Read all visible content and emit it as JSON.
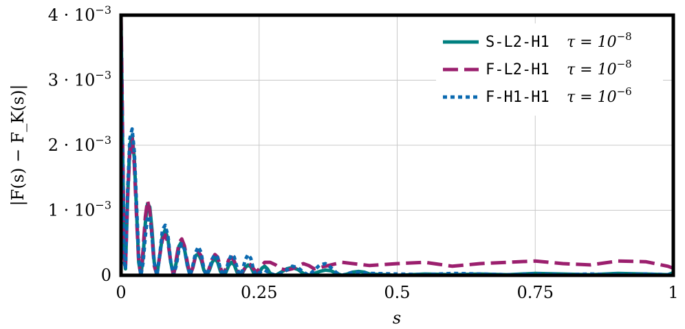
{
  "chart_data": {
    "type": "line",
    "xlabel": "s",
    "ylabel": "|F(s) − F_K(s)|",
    "xlim": [
      0,
      1
    ],
    "ylim": [
      0,
      0.004
    ],
    "grid": true,
    "legend_position": "top-right",
    "x_ticks": [
      {
        "value": 0,
        "label": "0"
      },
      {
        "value": 0.25,
        "label": "0.25"
      },
      {
        "value": 0.5,
        "label": "0.5"
      },
      {
        "value": 0.75,
        "label": "0.75"
      },
      {
        "value": 1,
        "label": "1"
      }
    ],
    "y_ticks": [
      {
        "value": 0,
        "label": "0",
        "base": "",
        "exp": ""
      },
      {
        "value": 0.001,
        "label": "1 · 10^-3",
        "base": "1 · 10",
        "exp": "−3"
      },
      {
        "value": 0.002,
        "label": "2 · 10^-3",
        "base": "2 · 10",
        "exp": "−3"
      },
      {
        "value": 0.003,
        "label": "3 · 10^-3",
        "base": "3 · 10",
        "exp": "−3"
      },
      {
        "value": 0.004,
        "label": "4 · 10^-3",
        "base": "4 · 10",
        "exp": "−3"
      }
    ],
    "series": [
      {
        "name": "S-L2-H1 τ = 10^-8",
        "code": "S-L2-H1",
        "tau_text": "τ = 10",
        "tau_exp": "−8",
        "color": "#008080",
        "style": "solid",
        "x": [
          0,
          0.002,
          0.004,
          0.006,
          0.008,
          0.012,
          0.016,
          0.02,
          0.024,
          0.028,
          0.032,
          0.036,
          0.04,
          0.044,
          0.048,
          0.052,
          0.056,
          0.06,
          0.065,
          0.07,
          0.075,
          0.08,
          0.085,
          0.09,
          0.095,
          0.1,
          0.105,
          0.11,
          0.115,
          0.12,
          0.125,
          0.13,
          0.135,
          0.14,
          0.145,
          0.15,
          0.155,
          0.16,
          0.165,
          0.17,
          0.175,
          0.18,
          0.185,
          0.19,
          0.195,
          0.2,
          0.205,
          0.21,
          0.215,
          0.22,
          0.225,
          0.23,
          0.235,
          0.24,
          0.245,
          0.25,
          0.255,
          0.26,
          0.265,
          0.27,
          0.28,
          0.29,
          0.3,
          0.31,
          0.32,
          0.33,
          0.34,
          0.35,
          0.36,
          0.37,
          0.38,
          0.39,
          0.4,
          0.41,
          0.42,
          0.43,
          0.44,
          0.45,
          0.5,
          0.55,
          0.6,
          0.65,
          0.7,
          0.75,
          0.8,
          0.85,
          0.9,
          0.95,
          0.99,
          1.0
        ],
        "y": [
          0.0039,
          0.0026,
          0.0012,
          0.0003,
          0.0001,
          0.0012,
          0.002,
          0.00215,
          0.0018,
          0.001,
          0.0002,
          0.0,
          0.0003,
          0.0008,
          0.0011,
          0.00105,
          0.0007,
          0.0002,
          0.0,
          0.0003,
          0.0006,
          0.0007,
          0.00055,
          0.0002,
          0.0,
          0.0002,
          0.00045,
          0.00052,
          0.0004,
          0.00015,
          0.0,
          0.00012,
          0.0003,
          0.00033,
          0.00024,
          8e-05,
          0.0,
          8e-05,
          0.0002,
          0.00026,
          0.0002,
          6e-05,
          0.0,
          5e-05,
          0.00015,
          0.0002,
          0.00016,
          5e-05,
          0.0,
          4e-05,
          0.00012,
          0.00016,
          0.00013,
          4e-05,
          0.0,
          4e-05,
          0.00011,
          0.00014,
          0.0001,
          3e-05,
          0.0,
          5e-05,
          0.0001,
          0.00012,
          9e-05,
          3e-05,
          0.0,
          3e-05,
          6e-05,
          8e-05,
          7e-05,
          3e-05,
          0.0,
          2e-05,
          5e-05,
          6e-05,
          5e-05,
          2e-05,
          0.0,
          2e-05,
          1e-05,
          2e-05,
          1e-05,
          3e-05,
          2e-05,
          1e-05,
          3e-05,
          2e-05,
          1e-05,
          4e-05
        ]
      },
      {
        "name": "F-L2-H1 τ = 10^-8",
        "code": "F-L2-H1",
        "tau_text": "τ = 10",
        "tau_exp": "−8",
        "color": "#9b1f6e",
        "style": "dashed",
        "x": [
          0,
          0.002,
          0.004,
          0.006,
          0.008,
          0.012,
          0.016,
          0.02,
          0.024,
          0.028,
          0.032,
          0.036,
          0.04,
          0.044,
          0.048,
          0.052,
          0.056,
          0.06,
          0.065,
          0.07,
          0.075,
          0.08,
          0.085,
          0.09,
          0.095,
          0.1,
          0.105,
          0.11,
          0.115,
          0.12,
          0.125,
          0.13,
          0.135,
          0.14,
          0.145,
          0.15,
          0.155,
          0.16,
          0.165,
          0.17,
          0.175,
          0.18,
          0.185,
          0.19,
          0.195,
          0.2,
          0.205,
          0.21,
          0.215,
          0.22,
          0.225,
          0.23,
          0.235,
          0.24,
          0.245,
          0.25,
          0.26,
          0.27,
          0.28,
          0.29,
          0.3,
          0.31,
          0.32,
          0.33,
          0.34,
          0.35,
          0.37,
          0.4,
          0.45,
          0.5,
          0.55,
          0.6,
          0.65,
          0.7,
          0.75,
          0.8,
          0.85,
          0.9,
          0.95,
          0.99,
          1.0
        ],
        "y": [
          0.004,
          0.0028,
          0.0013,
          0.0003,
          0.0001,
          0.0012,
          0.0019,
          0.0021,
          0.0017,
          0.0009,
          0.0002,
          0.0,
          0.0004,
          0.0009,
          0.00115,
          0.001,
          0.0006,
          0.00015,
          0.0,
          0.0003,
          0.00055,
          0.00062,
          0.0005,
          0.0002,
          0.0,
          0.00025,
          0.0005,
          0.00056,
          0.00045,
          0.0002,
          0.0,
          0.00012,
          0.0003,
          0.00036,
          0.0003,
          0.0001,
          0.0,
          0.00012,
          0.00025,
          0.00032,
          0.00028,
          0.00012,
          0.0,
          0.00012,
          0.00024,
          0.00028,
          0.00022,
          0.0001,
          0.0,
          6e-05,
          0.00012,
          0.00018,
          0.00016,
          0.0001,
          5e-05,
          0.0001,
          0.0002,
          0.0002,
          0.00016,
          0.0001,
          8e-05,
          0.0001,
          0.00014,
          0.00018,
          0.00015,
          0.0001,
          0.00014,
          0.0002,
          0.00015,
          0.00018,
          0.0002,
          0.00014,
          0.00018,
          0.0002,
          0.00022,
          0.00018,
          0.00016,
          0.00022,
          0.00021,
          0.00014,
          0.00011
        ]
      },
      {
        "name": "F-H1-H1 τ = 10^-6",
        "code": "F-H1-H1",
        "tau_text": "τ = 10",
        "tau_exp": "−6",
        "color": "#0b6ab0",
        "style": "dotted",
        "x": [
          0,
          0.002,
          0.004,
          0.006,
          0.008,
          0.012,
          0.016,
          0.02,
          0.024,
          0.028,
          0.032,
          0.036,
          0.04,
          0.044,
          0.048,
          0.052,
          0.056,
          0.06,
          0.065,
          0.07,
          0.075,
          0.08,
          0.085,
          0.09,
          0.095,
          0.1,
          0.105,
          0.11,
          0.115,
          0.12,
          0.125,
          0.13,
          0.135,
          0.14,
          0.145,
          0.15,
          0.155,
          0.16,
          0.165,
          0.17,
          0.175,
          0.18,
          0.185,
          0.19,
          0.195,
          0.2,
          0.205,
          0.21,
          0.215,
          0.22,
          0.225,
          0.23,
          0.235,
          0.24,
          0.245,
          0.25,
          0.26,
          0.27,
          0.28,
          0.29,
          0.3,
          0.31,
          0.32,
          0.33,
          0.34,
          0.35,
          0.36,
          0.37,
          0.38,
          0.39,
          0.4,
          0.42,
          0.45,
          0.5,
          0.55,
          0.6,
          0.65,
          0.7,
          0.75,
          0.8,
          0.85,
          0.9,
          0.95,
          0.99,
          1.0
        ],
        "y": [
          0.0037,
          0.0024,
          0.0011,
          0.0002,
          0.0001,
          0.0013,
          0.0021,
          0.00225,
          0.0019,
          0.0011,
          0.0003,
          0.0,
          0.0002,
          0.0006,
          0.0009,
          0.0009,
          0.0006,
          0.0002,
          0.0,
          0.0003,
          0.0007,
          0.00077,
          0.0006,
          0.0002,
          0.0,
          0.00015,
          0.0004,
          0.00048,
          0.0004,
          0.00015,
          0.0,
          0.00015,
          0.00035,
          0.00044,
          0.00035,
          0.0001,
          0.0,
          0.0001,
          0.00025,
          0.00032,
          0.00027,
          0.0001,
          0.0,
          8e-05,
          0.00022,
          0.00032,
          0.00028,
          0.00012,
          0.0,
          8e-05,
          0.00024,
          0.00032,
          0.00026,
          8e-05,
          0.0,
          4e-05,
          8e-05,
          3e-05,
          0.0,
          3e-05,
          8e-05,
          0.00014,
          0.00012,
          5e-05,
          0.0,
          8e-05,
          0.00016,
          0.00018,
          0.00012,
          4e-05,
          0.0,
          5e-05,
          3e-05,
          2e-05,
          1e-05,
          3e-05,
          2e-05,
          1e-05,
          2e-05,
          1e-05,
          2e-05,
          1e-05,
          2e-05,
          1e-05,
          2e-05
        ]
      }
    ]
  }
}
